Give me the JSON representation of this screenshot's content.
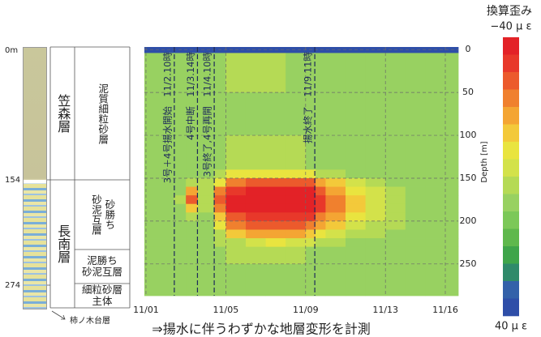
{
  "chart_data": {
    "type": "heatmap",
    "legend_title": "換算歪み",
    "legend_labels": [
      {
        "value": -40,
        "label": "−40 μ ε"
      },
      {
        "value": 40,
        "label": "40 μ ε"
      }
    ],
    "zlim": [
      -40,
      40
    ],
    "colors": [
      "#e32227",
      "#e8382a",
      "#ec5a2c",
      "#f0802e",
      "#f4a533",
      "#f3c93a",
      "#e9e43f",
      "#d3e24a",
      "#b5da55",
      "#98d161",
      "#7cc858",
      "#5fb84c",
      "#3fa54a",
      "#2f8a6a",
      "#3361a9",
      "#2e4ea8"
    ],
    "xlim": [
      0.92,
      16.65
    ],
    "ylim": [
      -3,
      287
    ],
    "xticks": [
      {
        "value": 1,
        "label": "11/01"
      },
      {
        "value": 5,
        "label": "11/05"
      },
      {
        "value": 9,
        "label": "11/09"
      },
      {
        "value": 13,
        "label": "11/13"
      },
      {
        "value": 16,
        "label": "11/16"
      }
    ],
    "yticks": [
      0,
      50,
      100,
      150,
      200,
      250
    ],
    "ylabel": "Depth [m]",
    "grid": true,
    "x_edges": [
      0.92,
      2,
      2.4,
      3,
      3.6,
      4.4,
      5,
      6,
      7,
      8,
      9,
      9.5,
      10,
      11,
      12,
      13,
      14,
      15,
      16.65
    ],
    "y_edges": [
      -3,
      4,
      50,
      100,
      140,
      150,
      160,
      170,
      180,
      190,
      200,
      210,
      220,
      230,
      250,
      287
    ],
    "z": [
      [
        36,
        36,
        36,
        36,
        36,
        36,
        36,
        36,
        36,
        36,
        36,
        36,
        36,
        36,
        36,
        36,
        36,
        36
      ],
      [
        8,
        8,
        8,
        8,
        8,
        8,
        3,
        3,
        3,
        8,
        8,
        8,
        8,
        8,
        8,
        8,
        8,
        8
      ],
      [
        8,
        8,
        8,
        8,
        8,
        8,
        8,
        8,
        8,
        8,
        8,
        8,
        8,
        8,
        8,
        8,
        8,
        8
      ],
      [
        8,
        8,
        8,
        8,
        8,
        8,
        3,
        3,
        3,
        3,
        8,
        8,
        8,
        8,
        8,
        8,
        8,
        8
      ],
      [
        8,
        8,
        8,
        8,
        8,
        3,
        -8,
        -8,
        -8,
        -8,
        -8,
        3,
        3,
        8,
        8,
        8,
        8,
        8
      ],
      [
        8,
        8,
        8,
        3,
        3,
        -10,
        -25,
        -30,
        -30,
        -30,
        -28,
        -20,
        -12,
        -5,
        3,
        8,
        8,
        8
      ],
      [
        8,
        8,
        8,
        -20,
        3,
        -25,
        -35,
        -40,
        -40,
        -40,
        -38,
        -30,
        -20,
        -10,
        -3,
        3,
        8,
        8
      ],
      [
        8,
        8,
        3,
        -30,
        3,
        -28,
        -40,
        -40,
        -40,
        -40,
        -40,
        -35,
        -25,
        -15,
        -5,
        3,
        8,
        8
      ],
      [
        8,
        8,
        8,
        -15,
        3,
        -25,
        -38,
        -40,
        -40,
        -40,
        -38,
        -32,
        -22,
        -12,
        -3,
        3,
        8,
        8
      ],
      [
        8,
        8,
        8,
        3,
        8,
        -15,
        -30,
        -35,
        -35,
        -35,
        -32,
        -25,
        -18,
        -8,
        -2,
        3,
        8,
        8
      ],
      [
        8,
        8,
        8,
        8,
        8,
        -8,
        -25,
        -28,
        -30,
        -28,
        -25,
        -20,
        -12,
        -5,
        3,
        3,
        8,
        8
      ],
      [
        8,
        8,
        8,
        8,
        8,
        3,
        -12,
        -18,
        -20,
        -18,
        -15,
        -10,
        -5,
        3,
        3,
        8,
        8,
        8
      ],
      [
        8,
        8,
        8,
        8,
        8,
        3,
        3,
        -5,
        -8,
        -5,
        -3,
        3,
        3,
        8,
        8,
        8,
        8,
        8
      ],
      [
        8,
        8,
        8,
        8,
        8,
        8,
        3,
        3,
        3,
        3,
        8,
        8,
        8,
        8,
        8,
        8,
        8,
        8
      ],
      [
        8,
        8,
        8,
        8,
        8,
        8,
        8,
        8,
        8,
        8,
        8,
        8,
        8,
        8,
        8,
        8,
        8,
        8
      ]
    ],
    "events": [
      {
        "x": 2.42,
        "label": "3号＋4号揚水開始　11/2.10時"
      },
      {
        "x": 3.58,
        "label": "4号中断　11/3.14時"
      },
      {
        "x": 4.42,
        "label": "3号終了,4号再開　11/4.10時"
      },
      {
        "x": 9.46,
        "label": "揚水終了　11/9.11時"
      }
    ],
    "caption": "⇒揚水に伴うわずかな地層変形を計測"
  },
  "geology": {
    "depth_labels": [
      "0m",
      "154",
      "274"
    ],
    "formations": [
      {
        "name": "笠森層",
        "layers": [
          [
            "泥質細粒砂層"
          ]
        ]
      },
      {
        "name": "長南層",
        "layers": [
          [
            "砂勝ち",
            "砂泥互層"
          ],
          [
            "泥勝ち",
            "砂泥互層"
          ],
          [
            "細粒砂層",
            "主体"
          ]
        ]
      }
    ],
    "base": "柿ノ木台層"
  }
}
